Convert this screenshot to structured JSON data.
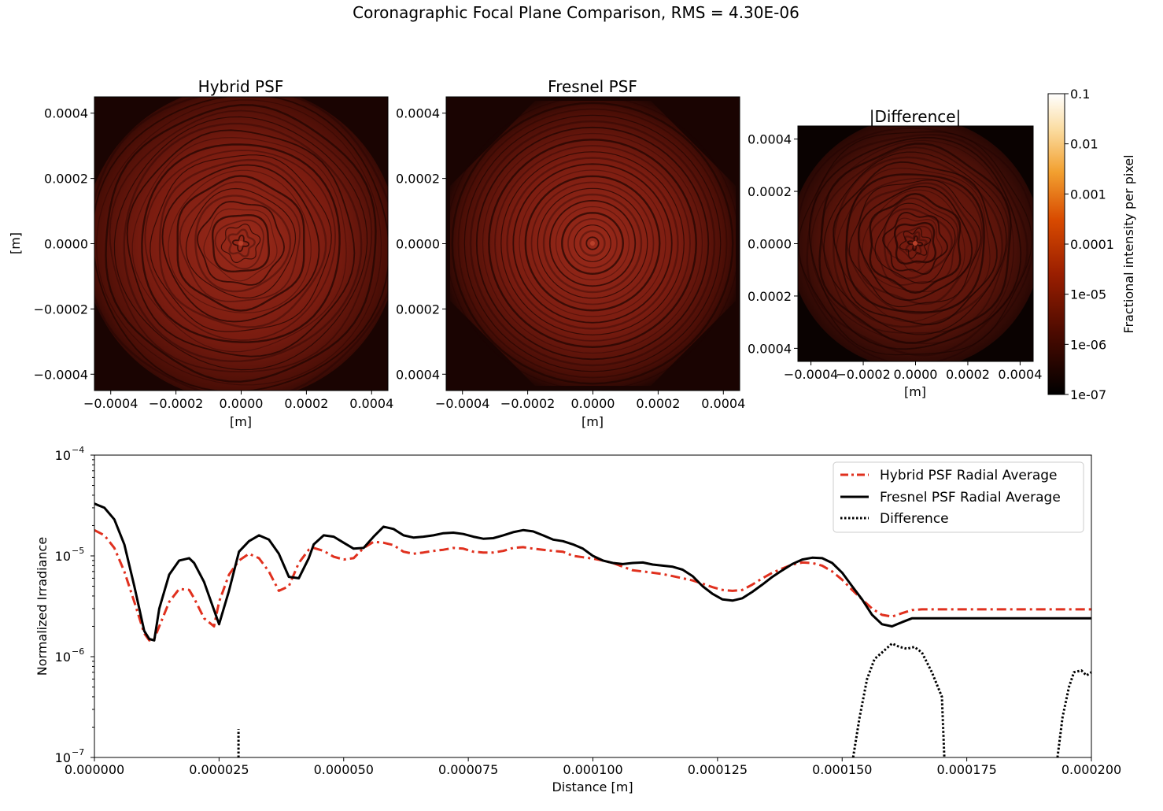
{
  "figure": {
    "suptitle": "Coronagraphic Focal Plane Comparison, RMS = 4.30E-06"
  },
  "chart_data": [
    {
      "type": "heatmap",
      "title": "Hybrid PSF",
      "xlabel": "[m]",
      "ylabel": "[m]",
      "extent": [
        -0.00045,
        0.00045,
        -0.00045,
        0.00045
      ],
      "xticks": [
        "−0.0004",
        "−0.0002",
        "0.0000",
        "0.0002",
        "0.0004"
      ],
      "yticks": [
        "0.0004",
        "0.0002",
        "0.0000",
        "−0.0002",
        "−0.0004"
      ],
      "colormap": "gist_heat",
      "scale": "log"
    },
    {
      "type": "heatmap",
      "title": "Fresnel PSF",
      "xlabel": "[m]",
      "extent": [
        -0.00045,
        0.00045,
        -0.00045,
        0.00045
      ],
      "xticks": [
        "−0.0004",
        "−0.0002",
        "0.0000",
        "0.0002",
        "0.0004"
      ],
      "yticks": [
        "0.0004",
        "0.0002",
        "0.0000",
        "0.0002",
        "0.0004"
      ],
      "colormap": "gist_heat",
      "scale": "log"
    },
    {
      "type": "heatmap",
      "title": "|Difference|",
      "xlabel": "[m]",
      "extent": [
        -0.00045,
        0.00045,
        -0.00045,
        0.00045
      ],
      "xticks": [
        "−0.0004",
        "−0.0002",
        "0.0000",
        "0.0002",
        "0.0004"
      ],
      "yticks": [
        "0.0004",
        "0.0002",
        "0.0000",
        "0.0002",
        "0.0004"
      ],
      "colormap": "gist_heat",
      "scale": "log",
      "colorbar": {
        "label": "Fractional intensity per pixel",
        "ticks": [
          "0.1",
          "0.01",
          "0.001",
          "0.0001",
          "1e-05",
          "1e-06",
          "1e-07"
        ],
        "range": [
          1e-07,
          0.1
        ]
      }
    },
    {
      "type": "line",
      "xlabel": "Distance [m]",
      "ylabel": "Normalized Irradiance",
      "xlim": [
        0,
        0.0002
      ],
      "ylim": [
        1e-07,
        0.0001
      ],
      "yscale": "log",
      "xticks": [
        "0.000000",
        "0.000025",
        "0.000050",
        "0.000075",
        "0.000100",
        "0.000125",
        "0.000150",
        "0.000175",
        "0.000200"
      ],
      "yticks": [
        "10",
        "10",
        "10",
        "10"
      ],
      "ytick_exponents": [
        "−4",
        "−5",
        "−6",
        "−7"
      ],
      "legend_position": "top-right",
      "series": [
        {
          "name": "Hybrid PSF Radial Average",
          "color": "#e0301e",
          "style": "dashdot",
          "x": [
            0,
            2e-06,
            4e-06,
            6e-06,
            8e-06,
            1e-05,
            1.1e-05,
            1.2e-05,
            1.3e-05,
            1.5e-05,
            1.7e-05,
            1.9e-05,
            2e-05,
            2.2e-05,
            2.4e-05,
            2.5e-05,
            2.7e-05,
            2.9e-05,
            3.1e-05,
            3.3e-05,
            3.5e-05,
            3.7e-05,
            3.9e-05,
            4.1e-05,
            4.3e-05,
            4.4e-05,
            4.6e-05,
            4.8e-05,
            5e-05,
            5.2e-05,
            5.4e-05,
            5.6e-05,
            5.8e-05,
            6e-05,
            6.2e-05,
            6.4e-05,
            6.6e-05,
            6.8e-05,
            7e-05,
            7.2e-05,
            7.4e-05,
            7.6e-05,
            7.8e-05,
            8e-05,
            8.2e-05,
            8.4e-05,
            8.6e-05,
            8.8e-05,
            9e-05,
            9.2e-05,
            9.4e-05,
            9.6e-05,
            9.8e-05,
            0.0001,
            0.000102,
            0.000104,
            0.000106,
            0.000108,
            0.00011,
            0.000112,
            0.000114,
            0.000116,
            0.000118,
            0.00012,
            0.000122,
            0.000124,
            0.000126,
            0.000128,
            0.00013,
            0.000132,
            0.000134,
            0.000136,
            0.000138,
            0.00014,
            0.000142,
            0.000144,
            0.000146,
            0.000148,
            0.00015,
            0.000152,
            0.000154,
            0.000156,
            0.000158,
            0.00016,
            0.000162,
            0.000164,
            0.000166,
            0.000168,
            0.00017,
            0.000172,
            0.000174,
            0.000176,
            0.000178,
            0.00018,
            0.000182,
            0.000184,
            0.000186,
            0.000188,
            0.00019,
            0.000192,
            0.000194,
            0.000196,
            0.000198,
            0.0002
          ],
          "y": [
            1.8e-05,
            1.6e-05,
            1.2e-05,
            7e-06,
            3.5e-06,
            1.7e-06,
            1.45e-06,
            1.5e-06,
            2e-06,
            3.5e-06,
            4.7e-06,
            4.6e-06,
            3.8e-06,
            2.4e-06,
            2e-06,
            3.5e-06,
            6.5e-06,
            9e-06,
            1.05e-05,
            9.5e-06,
            7e-06,
            4.5e-06,
            5e-06,
            8.5e-06,
            1.15e-05,
            1.2e-05,
            1.12e-05,
            9.8e-06,
            9.2e-06,
            9.5e-06,
            1.2e-05,
            1.38e-05,
            1.35e-05,
            1.28e-05,
            1.1e-05,
            1.05e-05,
            1.08e-05,
            1.12e-05,
            1.15e-05,
            1.2e-05,
            1.18e-05,
            1.1e-05,
            1.08e-05,
            1.08e-05,
            1.12e-05,
            1.2e-05,
            1.22e-05,
            1.18e-05,
            1.15e-05,
            1.12e-05,
            1.1e-05,
            1e-05,
            9.7e-06,
            9.4e-06,
            9e-06,
            8.5e-06,
            7.8e-06,
            7.2e-06,
            7e-06,
            6.8e-06,
            6.6e-06,
            6.3e-06,
            6e-06,
            5.7e-06,
            5.3e-06,
            4.9e-06,
            4.6e-06,
            4.5e-06,
            4.6e-06,
            5.2e-06,
            6e-06,
            6.8e-06,
            7.5e-06,
            8.2e-06,
            8.6e-06,
            8.5e-06,
            8e-06,
            7e-06,
            5.8e-06,
            4.6e-06,
            3.7e-06,
            3e-06,
            2.6e-06,
            2.5e-06,
            2.7e-06,
            2.9e-06,
            2.95e-06,
            2.95e-06,
            2.95e-06,
            2.95e-06,
            2.95e-06,
            2.95e-06,
            2.95e-06,
            2.95e-06,
            2.95e-06,
            2.95e-06,
            2.95e-06,
            2.95e-06,
            2.95e-06,
            2.95e-06,
            2.95e-06,
            2.95e-06,
            2.95e-06,
            2.95e-06
          ]
        },
        {
          "name": "Fresnel PSF Radial Average",
          "color": "#000000",
          "style": "solid",
          "x": [
            0,
            2e-06,
            4e-06,
            6e-06,
            8e-06,
            1e-05,
            1.1e-05,
            1.2e-05,
            1.3e-05,
            1.5e-05,
            1.7e-05,
            1.9e-05,
            2e-05,
            2.2e-05,
            2.4e-05,
            2.5e-05,
            2.7e-05,
            2.9e-05,
            3.1e-05,
            3.3e-05,
            3.5e-05,
            3.7e-05,
            3.9e-05,
            4.1e-05,
            4.3e-05,
            4.4e-05,
            4.6e-05,
            4.8e-05,
            5e-05,
            5.2e-05,
            5.4e-05,
            5.6e-05,
            5.8e-05,
            6e-05,
            6.2e-05,
            6.4e-05,
            6.6e-05,
            6.8e-05,
            7e-05,
            7.2e-05,
            7.4e-05,
            7.6e-05,
            7.8e-05,
            8e-05,
            8.2e-05,
            8.4e-05,
            8.6e-05,
            8.8e-05,
            9e-05,
            9.2e-05,
            9.4e-05,
            9.6e-05,
            9.8e-05,
            0.0001,
            0.000102,
            0.000104,
            0.000106,
            0.000108,
            0.00011,
            0.000112,
            0.000114,
            0.000116,
            0.000118,
            0.00012,
            0.000122,
            0.000124,
            0.000126,
            0.000128,
            0.00013,
            0.000132,
            0.000134,
            0.000136,
            0.000138,
            0.00014,
            0.000142,
            0.000144,
            0.000146,
            0.000148,
            0.00015,
            0.000152,
            0.000154,
            0.000156,
            0.000158,
            0.00016,
            0.000162,
            0.000164,
            0.000166,
            0.000168,
            0.00017,
            0.000172,
            0.000174,
            0.000176,
            0.000178,
            0.00018,
            0.000182,
            0.000184,
            0.000186,
            0.000188,
            0.00019,
            0.000192,
            0.000194,
            0.000196,
            0.000198,
            0.0002
          ],
          "y": [
            3.3e-05,
            3e-05,
            2.3e-05,
            1.3e-05,
            5e-06,
            1.8e-06,
            1.5e-06,
            1.45e-06,
            3e-06,
            6.5e-06,
            9e-06,
            9.5e-06,
            8.5e-06,
            5.5e-06,
            2.9e-06,
            2.1e-06,
            4.5e-06,
            1.1e-05,
            1.4e-05,
            1.6e-05,
            1.45e-05,
            1.05e-05,
            6.2e-06,
            6e-06,
            9.5e-06,
            1.3e-05,
            1.6e-05,
            1.55e-05,
            1.35e-05,
            1.18e-05,
            1.2e-05,
            1.55e-05,
            1.95e-05,
            1.85e-05,
            1.6e-05,
            1.52e-05,
            1.55e-05,
            1.6e-05,
            1.68e-05,
            1.7e-05,
            1.65e-05,
            1.55e-05,
            1.48e-05,
            1.5e-05,
            1.6e-05,
            1.72e-05,
            1.8e-05,
            1.75e-05,
            1.6e-05,
            1.45e-05,
            1.4e-05,
            1.3e-05,
            1.18e-05,
            1e-05,
            9e-06,
            8.5e-06,
            8.3e-06,
            8.5e-06,
            8.6e-06,
            8.2e-06,
            8e-06,
            7.8e-06,
            7.3e-06,
            6.3e-06,
            5e-06,
            4.2e-06,
            3.7e-06,
            3.6e-06,
            3.8e-06,
            4.4e-06,
            5.2e-06,
            6.2e-06,
            7.2e-06,
            8.3e-06,
            9.2e-06,
            9.6e-06,
            9.5e-06,
            8.5e-06,
            6.8e-06,
            5e-06,
            3.7e-06,
            2.6e-06,
            2.1e-06,
            2e-06,
            2.2e-06,
            2.4e-06,
            2.4e-06,
            2.4e-06,
            2.4e-06,
            2.4e-06,
            2.4e-06,
            2.4e-06,
            2.4e-06,
            2.4e-06,
            2.4e-06,
            2.4e-06,
            2.4e-06,
            2.4e-06,
            2.4e-06,
            2.4e-06,
            2.4e-06,
            2.4e-06,
            2.4e-06,
            2.4e-06
          ]
        },
        {
          "name": "Difference",
          "color": "#000000",
          "style": "dotted",
          "segments": [
            {
              "x": [
                2.89e-05,
                2.89e-05
              ],
              "y": [
                1e-07,
                1.9e-07
              ]
            },
            {
              "x": [
                0.0001522,
                0.0001535,
                0.000155,
                0.0001565,
                0.000158,
                0.00016,
                0.0001615,
                0.000163,
                0.0001645,
                0.000166,
                0.000168,
                0.00017,
                0.0001705
              ],
              "y": [
                1e-07,
                2.5e-07,
                6e-07,
                9.5e-07,
                1.1e-06,
                1.35e-06,
                1.25e-06,
                1.2e-06,
                1.25e-06,
                1.1e-06,
                7e-07,
                4e-07,
                1e-07
              ]
            },
            {
              "x": [
                0.0001932,
                0.0001942,
                0.0001955,
                0.0001965,
                0.000198,
                0.000199,
                0.0002
              ],
              "y": [
                1e-07,
                2.5e-07,
                5e-07,
                7e-07,
                7.3e-07,
                6.5e-07,
                7e-07
              ]
            }
          ]
        }
      ]
    }
  ]
}
